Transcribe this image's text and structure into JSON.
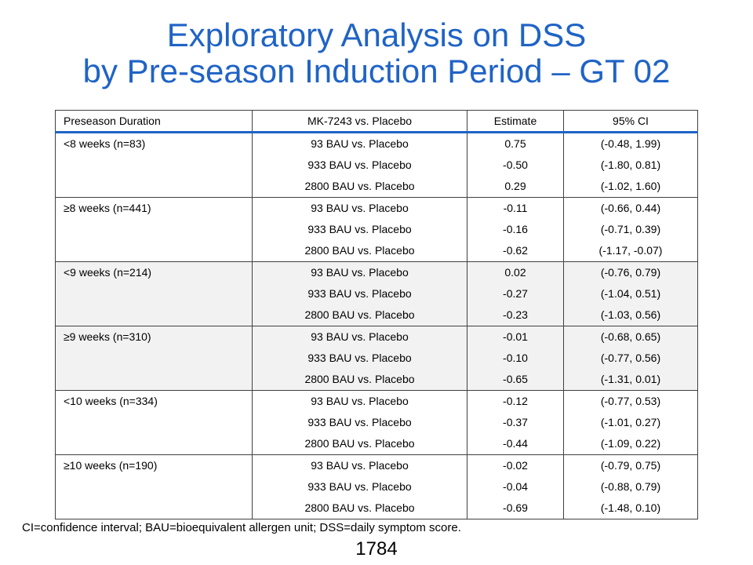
{
  "title": {
    "line1": "Exploratory Analysis on DSS",
    "line2": "by Pre-season Induction Period – GT 02"
  },
  "table": {
    "headers": [
      "Preseason  Duration",
      "MK-7243  vs.  Placebo",
      "Estimate",
      "95%  CI"
    ],
    "groups": [
      {
        "label": "<8 weeks  (n=83)",
        "rows": [
          {
            "comparison": "93 BAU  vs.  Placebo",
            "estimate": "0.75",
            "ci": "(-0.48, 1.99)"
          },
          {
            "comparison": "933 BAU  vs.  Placebo",
            "estimate": "-0.50",
            "ci": "(-1.80, 0.81)"
          },
          {
            "comparison": "2800 BAU  vs.  Placebo",
            "estimate": "0.29",
            "ci": "(-1.02, 1.60)"
          }
        ]
      },
      {
        "label": "≥8 weeks  (n=441)",
        "rows": [
          {
            "comparison": "93 BAU  vs.  Placebo",
            "estimate": "-0.11",
            "ci": "(-0.66, 0.44)"
          },
          {
            "comparison": "933 BAU  vs.  Placebo",
            "estimate": "-0.16",
            "ci": "(-0.71, 0.39)"
          },
          {
            "comparison": "2800 BAU  vs.  Placebo",
            "estimate": "-0.62",
            "ci": "(-1.17, -0.07)"
          }
        ]
      },
      {
        "label": "<9 weeks  (n=214)",
        "rows": [
          {
            "comparison": "93 BAU  vs.  Placebo",
            "estimate": "0.02",
            "ci": "(-0.76, 0.79)"
          },
          {
            "comparison": "933 BAU  vs.  Placebo",
            "estimate": "-0.27",
            "ci": "(-1.04, 0.51)"
          },
          {
            "comparison": "2800 BAU  vs.  Placebo",
            "estimate": "-0.23",
            "ci": "(-1.03, 0.56)"
          }
        ]
      },
      {
        "label": "≥9 weeks  (n=310)",
        "rows": [
          {
            "comparison": "93 BAU  vs.  Placebo",
            "estimate": "-0.01",
            "ci": "(-0.68, 0.65)"
          },
          {
            "comparison": "933 BAU  vs.  Placebo",
            "estimate": "-0.10",
            "ci": "(-0.77, 0.56)"
          },
          {
            "comparison": "2800 BAU  vs.  Placebo",
            "estimate": "-0.65",
            "ci": "(-1.31, 0.01)"
          }
        ]
      },
      {
        "label": "<10 weeks  (n=334)",
        "rows": [
          {
            "comparison": "93 BAU  vs.  Placebo",
            "estimate": "-0.12",
            "ci": "(-0.77, 0.53)"
          },
          {
            "comparison": "933 BAU  vs.  Placebo",
            "estimate": "-0.37",
            "ci": "(-1.01, 0.27)"
          },
          {
            "comparison": "2800 BAU  vs.  Placebo",
            "estimate": "-0.44",
            "ci": "(-1.09, 0.22)"
          }
        ]
      },
      {
        "label": "≥10 weeks  (n=190)",
        "rows": [
          {
            "comparison": "93 BAU  vs.  Placebo",
            "estimate": "-0.02",
            "ci": "(-0.79, 0.75)"
          },
          {
            "comparison": "933 BAU  vs.  Placebo",
            "estimate": "-0.04",
            "ci": "(-0.88, 0.79)"
          },
          {
            "comparison": "2800 BAU  vs.  Placebo",
            "estimate": "-0.69",
            "ci": "(-1.48, 0.10)"
          }
        ]
      }
    ]
  },
  "footnote": "CI=confidence interval; BAU=bioequivalent allergen unit;  DSS=daily symptom score.",
  "page_number": "1784",
  "colors": {
    "title": "#1f63c6",
    "header_rule": "#1f63c6",
    "shaded_band": "#f2f2f2"
  }
}
